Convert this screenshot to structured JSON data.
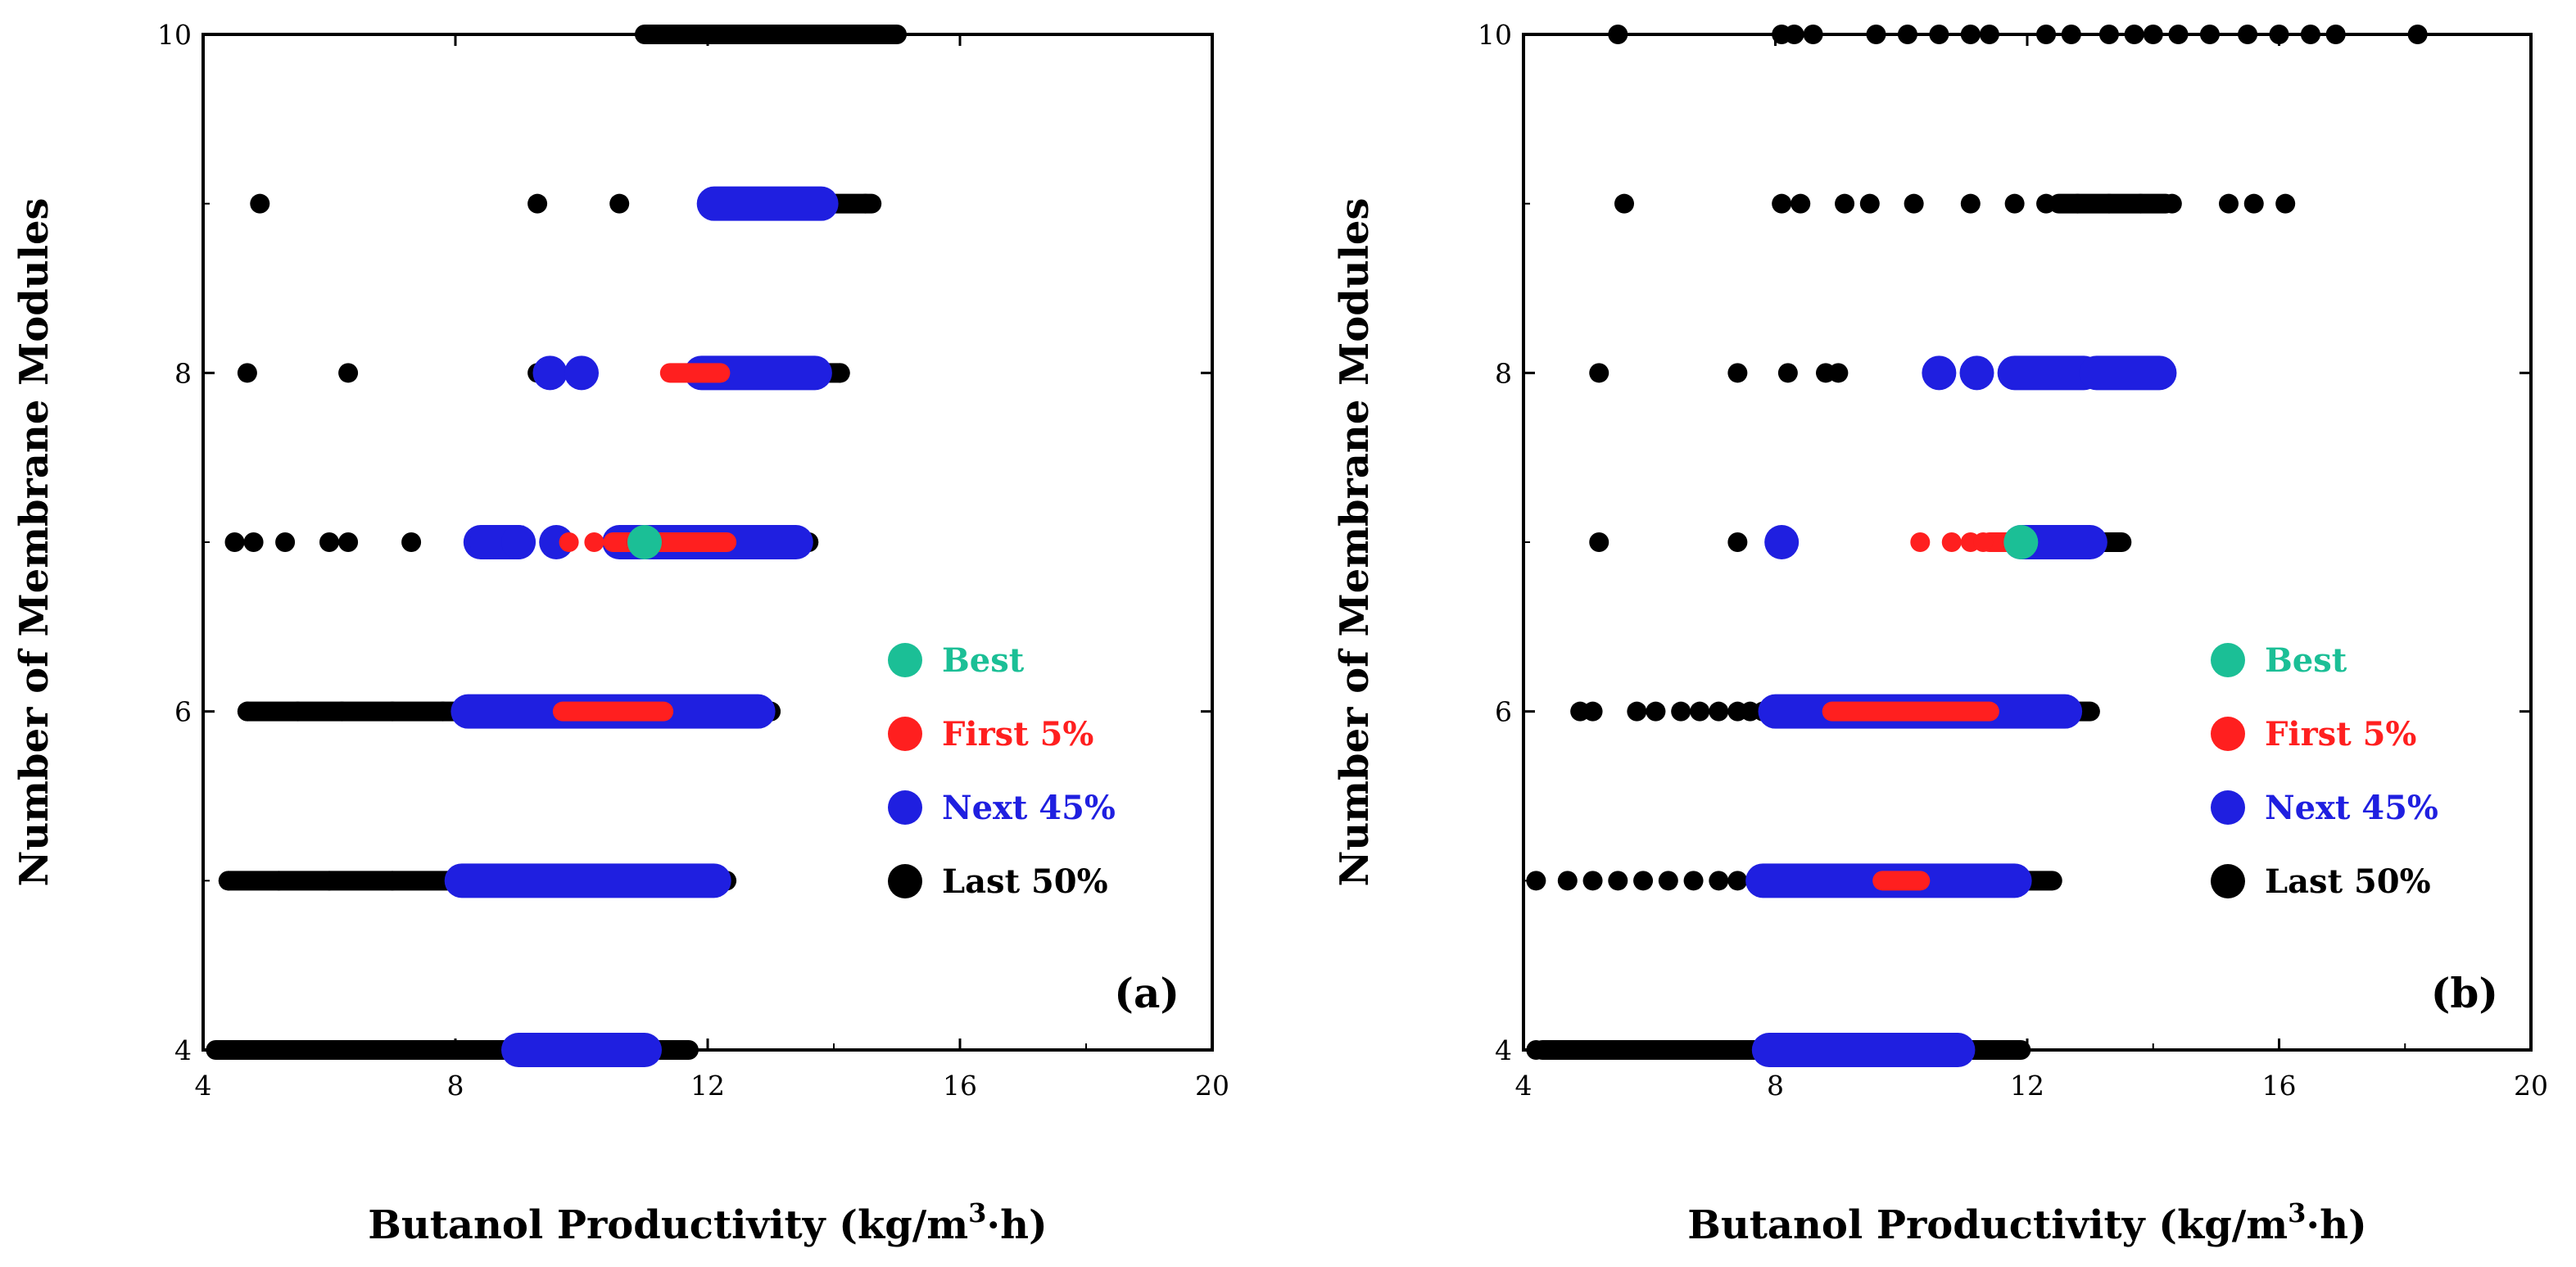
{
  "chart_data": [
    {
      "type": "scatter",
      "panel_label": "(a)",
      "xlabel_main": "Butanol Productivity (kg/m",
      "xlabel_sup": "3",
      "xlabel_end": "·h)",
      "ylabel": "Number of Membrane Modules",
      "xlim": [
        4,
        20
      ],
      "ylim": [
        4,
        10
      ],
      "xticks": [
        4,
        8,
        12,
        16,
        20
      ],
      "yticks": [
        4,
        6,
        8,
        10
      ],
      "xtick_labels": [
        "4",
        "8",
        "12",
        "16",
        "20"
      ],
      "ytick_labels": [
        "4",
        "6",
        "8",
        "10"
      ],
      "legend_position": "center-right",
      "legend": [
        {
          "label": "Best",
          "color": "#1bbf96"
        },
        {
          "label": "First 5%",
          "color": "#ff1f1f"
        },
        {
          "label": "Next 45%",
          "color": "#1f1fe0"
        },
        {
          "label": "Last 50%",
          "color": "#000000"
        }
      ],
      "series": [
        {
          "name": "Last 50%",
          "color": "#000000",
          "size": "small",
          "points": [
            [
              14.9,
              10
            ],
            [
              11.5,
              10
            ],
            [
              4.9,
              9
            ],
            [
              9.3,
              9
            ],
            [
              10.6,
              9
            ],
            [
              14.5,
              9
            ],
            [
              4.7,
              8
            ],
            [
              6.3,
              8
            ],
            [
              9.3,
              8
            ],
            [
              14.1,
              8
            ],
            [
              4.5,
              7
            ],
            [
              4.8,
              7
            ],
            [
              5.3,
              7
            ],
            [
              6.0,
              7
            ],
            [
              6.3,
              7
            ],
            [
              7.3,
              7
            ],
            [
              13.6,
              7
            ],
            [
              4.7,
              6
            ],
            [
              5.5,
              6
            ],
            [
              6.2,
              6
            ],
            [
              7.0,
              6
            ],
            [
              7.8,
              6
            ],
            [
              13.0,
              6
            ],
            [
              4.4,
              5
            ],
            [
              5.2,
              5
            ],
            [
              6.0,
              5
            ],
            [
              7.0,
              5
            ],
            [
              12.2,
              5
            ],
            [
              4.3,
              4
            ],
            [
              5.5,
              4
            ],
            [
              7.0,
              4
            ],
            [
              8.5,
              4
            ],
            [
              11.6,
              4
            ]
          ],
          "ranges": [
            [
              11.0,
              15.0,
              10
            ],
            [
              13.5,
              14.6,
              9
            ],
            [
              12.5,
              14.1,
              8
            ],
            [
              11.0,
              13.6,
              7
            ],
            [
              4.7,
              13.0,
              6
            ],
            [
              4.4,
              12.3,
              5
            ],
            [
              4.2,
              11.7,
              4
            ]
          ]
        },
        {
          "name": "Next 45%",
          "color": "#1f1fe0",
          "size": "large",
          "points": [
            [
              9.5,
              8
            ],
            [
              10.0,
              8
            ],
            [
              8.5,
              7
            ],
            [
              9.0,
              7
            ],
            [
              9.6,
              7
            ]
          ],
          "ranges": [
            [
              12.1,
              13.8,
              9
            ],
            [
              11.9,
              13.7,
              8
            ],
            [
              8.4,
              9.0,
              7
            ],
            [
              10.6,
              13.4,
              7
            ],
            [
              8.2,
              12.8,
              6
            ],
            [
              8.1,
              12.1,
              5
            ],
            [
              9.0,
              11.0,
              4
            ]
          ]
        },
        {
          "name": "First 5%",
          "color": "#ff1f1f",
          "size": "small",
          "points": [
            [
              9.8,
              7
            ],
            [
              10.2,
              7
            ]
          ],
          "ranges": [
            [
              11.4,
              12.2,
              8
            ],
            [
              10.5,
              12.3,
              7
            ],
            [
              9.7,
              11.3,
              6
            ]
          ]
        },
        {
          "name": "Best",
          "color": "#1bbf96",
          "size": "large",
          "points": [
            [
              11.0,
              7
            ]
          ],
          "ranges": []
        }
      ]
    },
    {
      "type": "scatter",
      "panel_label": "(b)",
      "xlabel_main": "Butanol Productivity (kg/m",
      "xlabel_sup": "3",
      "xlabel_end": "·h)",
      "ylabel": "Number of Membrane Modules",
      "xlim": [
        4,
        20
      ],
      "ylim": [
        4,
        10
      ],
      "xticks": [
        4,
        8,
        12,
        16,
        20
      ],
      "yticks": [
        4,
        6,
        8,
        10
      ],
      "xtick_labels": [
        "4",
        "8",
        "12",
        "16",
        "20"
      ],
      "ytick_labels": [
        "4",
        "6",
        "8",
        "10"
      ],
      "legend_position": "center-right",
      "legend": [
        {
          "label": "Best",
          "color": "#1bbf96"
        },
        {
          "label": "First 5%",
          "color": "#ff1f1f"
        },
        {
          "label": "Next 45%",
          "color": "#1f1fe0"
        },
        {
          "label": "Last 50%",
          "color": "#000000"
        }
      ],
      "series": [
        {
          "name": "Last 50%",
          "color": "#000000",
          "size": "small",
          "points": [
            [
              5.5,
              10
            ],
            [
              8.1,
              10
            ],
            [
              8.3,
              10
            ],
            [
              8.6,
              10
            ],
            [
              9.6,
              10
            ],
            [
              10.1,
              10
            ],
            [
              10.6,
              10
            ],
            [
              11.1,
              10
            ],
            [
              11.4,
              10
            ],
            [
              12.3,
              10
            ],
            [
              12.7,
              10
            ],
            [
              13.3,
              10
            ],
            [
              13.7,
              10
            ],
            [
              14.0,
              10
            ],
            [
              14.4,
              10
            ],
            [
              14.9,
              10
            ],
            [
              15.5,
              10
            ],
            [
              16.0,
              10
            ],
            [
              16.5,
              10
            ],
            [
              16.9,
              10
            ],
            [
              18.2,
              10
            ],
            [
              5.6,
              9
            ],
            [
              8.1,
              9
            ],
            [
              8.4,
              9
            ],
            [
              9.1,
              9
            ],
            [
              9.5,
              9
            ],
            [
              10.2,
              9
            ],
            [
              11.1,
              9
            ],
            [
              11.8,
              9
            ],
            [
              12.3,
              9
            ],
            [
              12.8,
              9
            ],
            [
              13.3,
              9
            ],
            [
              13.8,
              9
            ],
            [
              14.3,
              9
            ],
            [
              15.2,
              9
            ],
            [
              15.6,
              9
            ],
            [
              16.1,
              9
            ],
            [
              5.2,
              8
            ],
            [
              7.4,
              8
            ],
            [
              8.2,
              8
            ],
            [
              8.8,
              8
            ],
            [
              9.0,
              8
            ],
            [
              5.2,
              7
            ],
            [
              7.4,
              7
            ],
            [
              4.9,
              6
            ],
            [
              5.1,
              6
            ],
            [
              5.8,
              6
            ],
            [
              6.1,
              6
            ],
            [
              6.5,
              6
            ],
            [
              6.8,
              6
            ],
            [
              7.1,
              6
            ],
            [
              7.4,
              6
            ],
            [
              7.6,
              6
            ],
            [
              4.2,
              5
            ],
            [
              4.7,
              5
            ],
            [
              5.1,
              5
            ],
            [
              5.5,
              5
            ],
            [
              5.9,
              5
            ],
            [
              6.3,
              5
            ],
            [
              6.7,
              5
            ],
            [
              7.1,
              5
            ],
            [
              7.4,
              5
            ],
            [
              4.2,
              4
            ],
            [
              4.6,
              4
            ],
            [
              5.0,
              4
            ]
          ],
          "ranges": [
            [
              12.5,
              14.2,
              9
            ],
            [
              12.5,
              13.5,
              7
            ],
            [
              7.8,
              13.0,
              6
            ],
            [
              7.7,
              12.4,
              5
            ],
            [
              4.3,
              11.9,
              4
            ]
          ]
        },
        {
          "name": "Next 45%",
          "color": "#1f1fe0",
          "size": "large",
          "points": [
            [
              10.6,
              8
            ],
            [
              11.2,
              8
            ],
            [
              8.1,
              7
            ]
          ],
          "ranges": [
            [
              11.8,
              12.9,
              8
            ],
            [
              13.1,
              14.1,
              8
            ],
            [
              11.9,
              13.0,
              7
            ],
            [
              8.0,
              12.6,
              6
            ],
            [
              7.8,
              11.8,
              5
            ],
            [
              7.9,
              10.9,
              4
            ]
          ]
        },
        {
          "name": "First 5%",
          "color": "#ff1f1f",
          "size": "small",
          "points": [
            [
              10.3,
              7
            ],
            [
              10.8,
              7
            ],
            [
              11.1,
              7
            ],
            [
              11.3,
              7
            ]
          ],
          "ranges": [
            [
              11.4,
              11.8,
              7
            ],
            [
              8.9,
              11.4,
              6
            ],
            [
              9.7,
              10.3,
              5
            ]
          ]
        },
        {
          "name": "Best",
          "color": "#1bbf96",
          "size": "large",
          "points": [
            [
              11.9,
              7
            ]
          ],
          "ranges": []
        }
      ]
    }
  ]
}
